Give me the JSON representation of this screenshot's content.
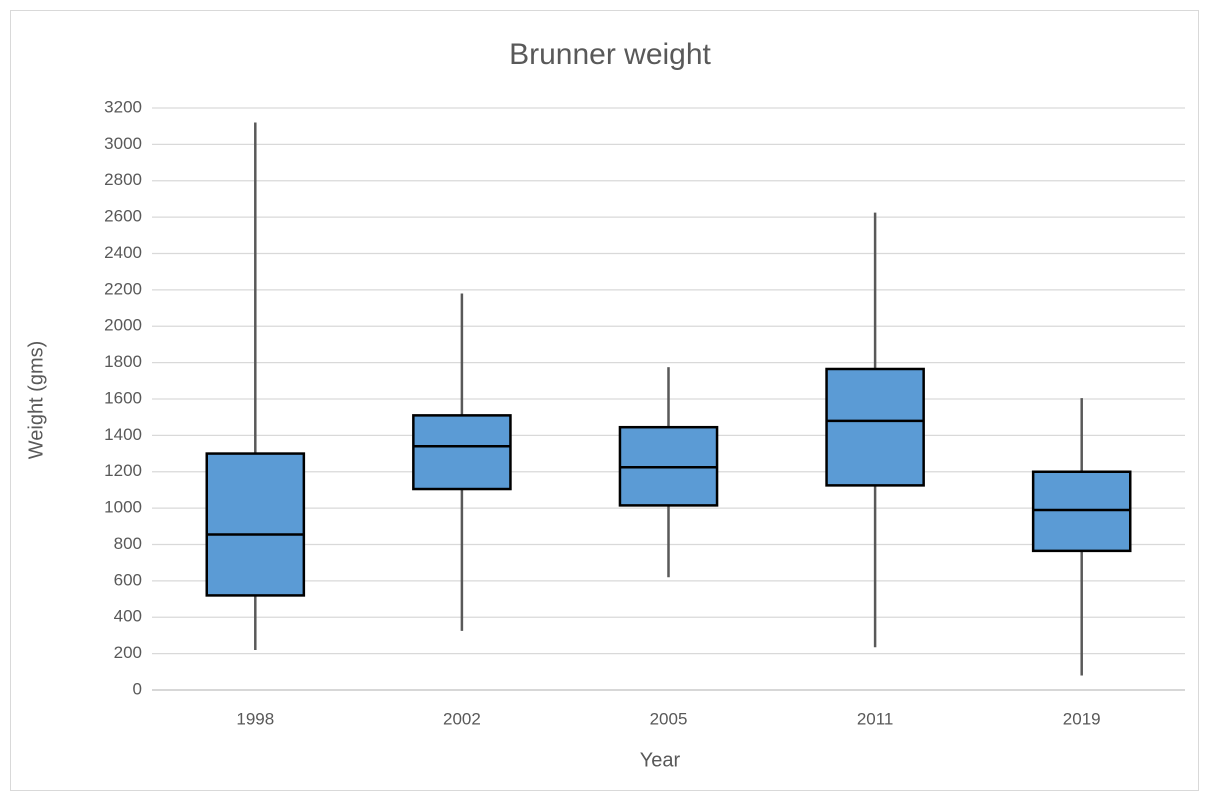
{
  "chart_data": {
    "type": "box",
    "title": "Brunner weight",
    "x_label": "Year",
    "y_label": "Weight (gms)",
    "categories": [
      "1998",
      "2002",
      "2005",
      "2011",
      "2019"
    ],
    "min": [
      220,
      325,
      620,
      235,
      80
    ],
    "q1": [
      520,
      1105,
      1015,
      1125,
      765
    ],
    "median": [
      855,
      1340,
      1225,
      1480,
      990
    ],
    "q3": [
      1300,
      1510,
      1445,
      1765,
      1200
    ],
    "max": [
      3120,
      2180,
      1775,
      2625,
      1605
    ],
    "color": "#5b9bd5",
    "ylim": [
      0,
      3200
    ],
    "yticks": [
      0,
      200,
      400,
      600,
      800,
      1000,
      1200,
      1400,
      1600,
      1800,
      2000,
      2200,
      2400,
      2600,
      2800,
      3000,
      3200
    ],
    "grid": true
  }
}
